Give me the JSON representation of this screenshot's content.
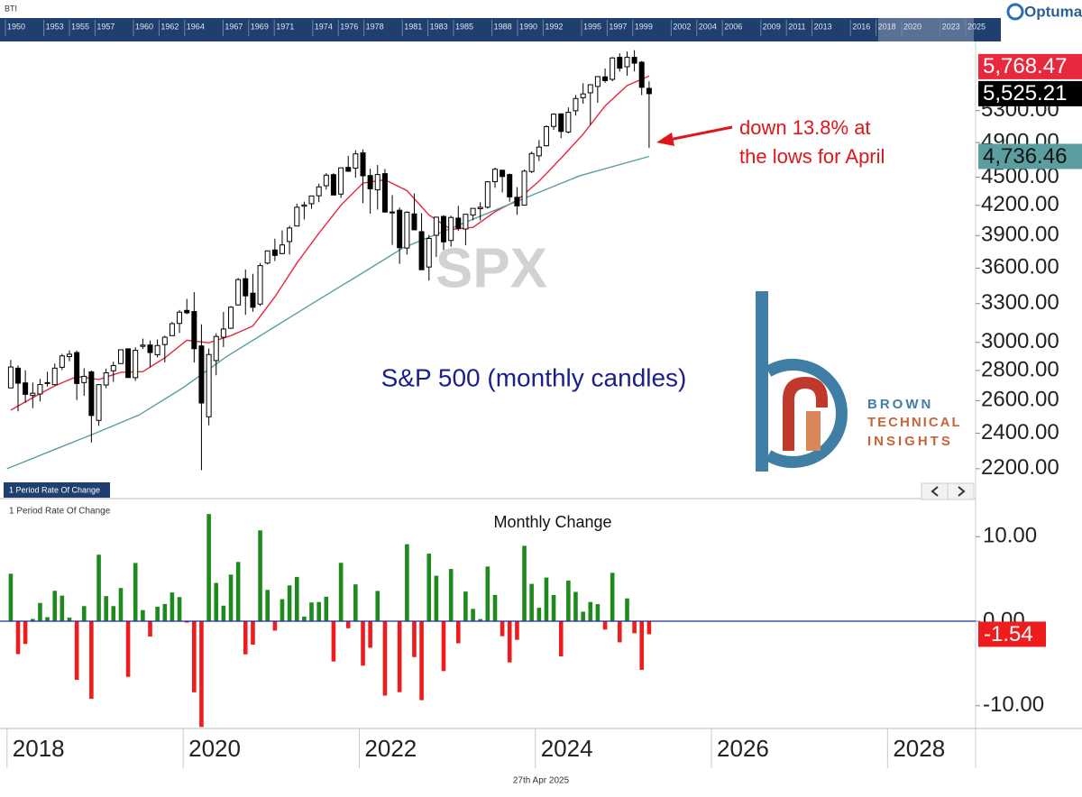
{
  "header": {
    "symbol": "BTI",
    "brand": "Optuma",
    "navigator": [
      1950,
      1953,
      1955,
      1957,
      1960,
      1962,
      1964,
      1967,
      1969,
      1971,
      1974,
      1976,
      1978,
      1981,
      1983,
      1985,
      1988,
      1990,
      1992,
      1995,
      1997,
      1999,
      2002,
      2004,
      2006,
      2009,
      2011,
      2013,
      2016,
      2018,
      2020,
      2023,
      2025
    ]
  },
  "logo": {
    "line1": "BROWN",
    "line2": "TECHNICAL",
    "line3": "INSIGHTS"
  },
  "footer": {
    "date": "27th Apr 2025"
  },
  "chart_data": [
    {
      "type": "candlestick",
      "title": "SPX",
      "subtitle": "S&P 500 (monthly candles)",
      "annotation": [
        "down 13.8% at",
        "the lows for April"
      ],
      "log_scale": true,
      "up_color": "#ffffff",
      "down_color": "#000000",
      "xlim": [
        2017.92,
        2029.0
      ],
      "xticks": [
        2018,
        2020,
        2022,
        2024,
        2026,
        2028
      ],
      "ylim": [
        2058,
        6253
      ],
      "yticks": [
        {
          "value": 2200,
          "label": "2200.00"
        },
        {
          "value": 2400,
          "label": "2400.00"
        },
        {
          "value": 2600,
          "label": "2600.00"
        },
        {
          "value": 2800,
          "label": "2800.00"
        },
        {
          "value": 3000,
          "label": "3000.00"
        },
        {
          "value": 3300,
          "label": "3300.00"
        },
        {
          "value": 3600,
          "label": "3600.00"
        },
        {
          "value": 3900,
          "label": "3900.00"
        },
        {
          "value": 4200,
          "label": "4200.00"
        },
        {
          "value": 4500,
          "label": "4500.00"
        },
        {
          "value": 4900,
          "label": "4900.00"
        },
        {
          "value": 5300,
          "label": "5300.00"
        }
      ],
      "x": [
        2018.042,
        2018.125,
        2018.208,
        2018.292,
        2018.375,
        2018.458,
        2018.542,
        2018.625,
        2018.708,
        2018.792,
        2018.875,
        2018.958,
        2019.042,
        2019.125,
        2019.208,
        2019.292,
        2019.375,
        2019.458,
        2019.542,
        2019.625,
        2019.708,
        2019.792,
        2019.875,
        2019.958,
        2020.042,
        2020.125,
        2020.208,
        2020.292,
        2020.375,
        2020.458,
        2020.542,
        2020.625,
        2020.708,
        2020.792,
        2020.875,
        2020.958,
        2021.042,
        2021.125,
        2021.208,
        2021.292,
        2021.375,
        2021.458,
        2021.542,
        2021.625,
        2021.708,
        2021.792,
        2021.875,
        2021.958,
        2022.042,
        2022.125,
        2022.208,
        2022.292,
        2022.375,
        2022.458,
        2022.542,
        2022.625,
        2022.708,
        2022.792,
        2022.875,
        2022.958,
        2023.042,
        2023.125,
        2023.208,
        2023.292,
        2023.375,
        2023.458,
        2023.542,
        2023.625,
        2023.708,
        2023.792,
        2023.875,
        2023.958,
        2024.042,
        2024.125,
        2024.208,
        2024.292,
        2024.375,
        2024.458,
        2024.542,
        2024.625,
        2024.708,
        2024.792,
        2024.875,
        2024.958,
        2025.042,
        2025.125,
        2025.208,
        2025.292
      ],
      "open": [
        2683,
        2816,
        2716,
        2633,
        2643,
        2718,
        2704,
        2822,
        2897,
        2926,
        2718,
        2790,
        2477,
        2702,
        2798,
        2848,
        2953,
        2751,
        2971,
        2981,
        2910,
        2984,
        3050,
        3143,
        3245,
        3236,
        2974,
        2499,
        2869,
        3038,
        3106,
        3289,
        3508,
        3385,
        3296,
        3645,
        3764,
        3731,
        3843,
        3992,
        4191,
        4217,
        4300,
        4407,
        4529,
        4318,
        4610,
        4602,
        4778,
        4519,
        4363,
        4540,
        4130,
        4150,
        3782,
        4113,
        3937,
        3610,
        3902,
        4087,
        3853,
        4070,
        3963,
        4102,
        4166,
        4181,
        4451,
        4578,
        4530,
        4284,
        4202,
        4564,
        4743,
        4862,
        5098,
        5258,
        5029,
        5298,
        5471,
        5537,
        5624,
        5758,
        5723,
        6041,
        5903,
        6041,
        5969,
        5598
      ],
      "high": [
        2873,
        2835,
        2801,
        2718,
        2742,
        2791,
        2848,
        2917,
        2941,
        2940,
        2815,
        2800,
        2708,
        2813,
        2861,
        2949,
        2954,
        2964,
        3028,
        3014,
        3022,
        3050,
        3154,
        3248,
        3338,
        3394,
        3136,
        2955,
        3068,
        3233,
        3279,
        3514,
        3588,
        3550,
        3646,
        3760,
        3870,
        3950,
        3994,
        4218,
        4238,
        4302,
        4430,
        4545,
        4545,
        4608,
        4744,
        4808,
        4819,
        4595,
        4637,
        4593,
        4307,
        4178,
        4140,
        4325,
        4120,
        3906,
        4081,
        4101,
        4095,
        4195,
        4111,
        4170,
        4232,
        4458,
        4607,
        4584,
        4541,
        4393,
        4587,
        4793,
        4932,
        5111,
        5265,
        5263,
        5342,
        5506,
        5669,
        5651,
        5768,
        5878,
        6044,
        6100,
        6128,
        6147,
        5986,
        5695
      ],
      "low": [
        2683,
        2533,
        2586,
        2553,
        2595,
        2691,
        2699,
        2803,
        2864,
        2604,
        2631,
        2346,
        2444,
        2681,
        2723,
        2848,
        2751,
        2729,
        2952,
        2822,
        2892,
        2856,
        3050,
        3070,
        3215,
        2855,
        2192,
        2447,
        2767,
        2966,
        3101,
        3285,
        3210,
        3234,
        3280,
        3633,
        3663,
        3725,
        3723,
        3989,
        4057,
        4165,
        4233,
        4367,
        4306,
        4278,
        4560,
        4495,
        4223,
        4115,
        4157,
        4124,
        3811,
        3637,
        3722,
        3955,
        3585,
        3492,
        3699,
        3764,
        3795,
        3944,
        3809,
        4049,
        4048,
        4167,
        4385,
        4335,
        4238,
        4104,
        4198,
        4547,
        4683,
        4853,
        5056,
        4954,
        5012,
        5235,
        5390,
        5120,
        5403,
        5675,
        5696,
        5833,
        5774,
        5837,
        5505,
        4835
      ],
      "close": [
        2824,
        2714,
        2641,
        2648,
        2705,
        2718,
        2816,
        2902,
        2914,
        2712,
        2760,
        2507,
        2704,
        2784,
        2834,
        2946,
        2752,
        2942,
        2980,
        2926,
        2977,
        3038,
        3141,
        3231,
        3226,
        2954,
        2585,
        2912,
        3044,
        3100,
        3271,
        3500,
        3363,
        3270,
        3622,
        3756,
        3714,
        3811,
        3973,
        4181,
        4204,
        4298,
        4395,
        4523,
        4308,
        4605,
        4567,
        4766,
        4516,
        4374,
        4530,
        4132,
        4132,
        3785,
        4130,
        3955,
        3586,
        3872,
        4080,
        3840,
        4077,
        3970,
        4109,
        4169,
        4180,
        4450,
        4589,
        4508,
        4288,
        4194,
        4568,
        4770,
        4846,
        5096,
        5254,
        5036,
        5278,
        5460,
        5522,
        5648,
        5762,
        5705,
        6032,
        5882,
        6041,
        5955,
        5612,
        5525.21
      ],
      "last_close_label": "5,525.21",
      "overlays": [
        {
          "color": "#e8283c",
          "label": "5,768.47",
          "x": [
            2018.042,
            2018.292,
            2018.542,
            2018.792,
            2019.042,
            2019.292,
            2019.542,
            2019.792,
            2020.042,
            2020.292,
            2020.542,
            2020.792,
            2021.042,
            2021.292,
            2021.542,
            2021.792,
            2022.042,
            2022.292,
            2022.542,
            2022.792,
            2023.042,
            2023.292,
            2023.542,
            2023.792,
            2024.042,
            2024.292,
            2024.542,
            2024.792,
            2025.042,
            2025.292
          ],
          "values": [
            2540,
            2619,
            2696,
            2759,
            2739,
            2788,
            2792,
            2888,
            3016,
            2997,
            3050,
            3123,
            3355,
            3646,
            3922,
            4201,
            4436,
            4472,
            4354,
            4101,
            3959,
            3979,
            4134,
            4253,
            4456,
            4715,
            5002,
            5361,
            5637,
            5768.47
          ]
        },
        {
          "color": "#5a9ea0",
          "label": "4,736.46",
          "x": [
            2018.0,
            2018.5,
            2019.0,
            2019.5,
            2020.0,
            2020.5,
            2021.0,
            2021.5,
            2022.0,
            2022.5,
            2023.0,
            2023.5,
            2024.0,
            2024.5,
            2025.292
          ],
          "values": [
            2200,
            2298,
            2400,
            2510,
            2684,
            2900,
            3100,
            3315,
            3540,
            3785,
            3955,
            4135,
            4320,
            4515,
            4736.46
          ]
        }
      ]
    },
    {
      "type": "bar",
      "title": "Monthly Change",
      "label": "1 Period Rate Of Change",
      "positive_color": "#1e8a1e",
      "negative_color": "#ee1c1c",
      "zero_color": "#1c2c9c",
      "xlim": [
        2017.92,
        2029.0
      ],
      "ylim": [
        -12.69,
        14.19
      ],
      "yticks": [
        {
          "value": 10,
          "label": "10.00"
        },
        {
          "value": 0,
          "label": "0.00"
        },
        {
          "value": -10,
          "label": "-10.00"
        }
      ],
      "x": [
        2018.042,
        2018.125,
        2018.208,
        2018.292,
        2018.375,
        2018.458,
        2018.542,
        2018.625,
        2018.708,
        2018.792,
        2018.875,
        2018.958,
        2019.042,
        2019.125,
        2019.208,
        2019.292,
        2019.375,
        2019.458,
        2019.542,
        2019.625,
        2019.708,
        2019.792,
        2019.875,
        2019.958,
        2020.042,
        2020.125,
        2020.208,
        2020.292,
        2020.375,
        2020.458,
        2020.542,
        2020.625,
        2020.708,
        2020.792,
        2020.875,
        2020.958,
        2021.042,
        2021.125,
        2021.208,
        2021.292,
        2021.375,
        2021.458,
        2021.542,
        2021.625,
        2021.708,
        2021.792,
        2021.875,
        2021.958,
        2022.042,
        2022.125,
        2022.208,
        2022.292,
        2022.375,
        2022.458,
        2022.542,
        2022.625,
        2022.708,
        2022.792,
        2022.875,
        2022.958,
        2023.042,
        2023.125,
        2023.208,
        2023.292,
        2023.375,
        2023.458,
        2023.542,
        2023.625,
        2023.708,
        2023.792,
        2023.875,
        2023.958,
        2024.042,
        2024.125,
        2024.208,
        2024.292,
        2024.375,
        2024.458,
        2024.542,
        2024.625,
        2024.708,
        2024.792,
        2024.875,
        2024.958,
        2025.042,
        2025.125,
        2025.208,
        2025.292
      ],
      "values": [
        5.62,
        -3.89,
        -2.69,
        0.27,
        2.16,
        0.48,
        3.6,
        3.03,
        0.43,
        -6.94,
        1.79,
        -9.18,
        7.87,
        2.97,
        1.79,
        3.93,
        -6.58,
        6.89,
        1.31,
        -1.81,
        1.72,
        2.04,
        3.4,
        2.86,
        -0.16,
        -8.41,
        -12.51,
        12.68,
        4.53,
        1.84,
        5.51,
        7.01,
        -3.92,
        -2.77,
        10.75,
        3.71,
        -1.11,
        2.61,
        4.24,
        5.24,
        0.55,
        2.22,
        2.27,
        2.9,
        -4.76,
        6.91,
        -0.83,
        4.36,
        -5.26,
        -3.14,
        3.58,
        -8.8,
        0.01,
        -8.39,
        9.11,
        -4.24,
        -9.34,
        7.99,
        5.38,
        -5.9,
        6.18,
        -2.61,
        3.51,
        1.46,
        0.25,
        6.47,
        3.11,
        -1.77,
        -4.87,
        -2.2,
        8.92,
        4.42,
        1.59,
        5.17,
        3.1,
        -4.16,
        4.8,
        3.47,
        1.13,
        2.28,
        2.02,
        -0.99,
        5.73,
        -2.5,
        2.7,
        -1.42,
        -5.75,
        -1.54
      ]
    }
  ]
}
